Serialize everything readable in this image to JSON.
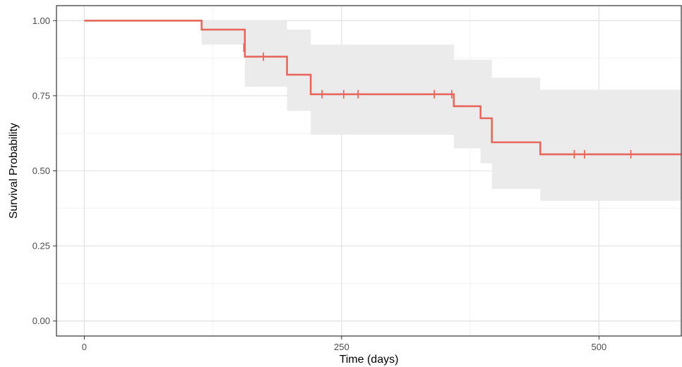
{
  "chart_data": {
    "type": "line",
    "title": "",
    "xlabel": "Time (days)",
    "ylabel": "Survival Probability",
    "xlim": [
      -27,
      580
    ],
    "ylim": [
      -0.05,
      1.05
    ],
    "x_ticks": [
      0,
      250,
      500
    ],
    "x_tick_labels": [
      "0",
      "250",
      "500"
    ],
    "y_ticks": [
      0,
      0.25,
      0.5,
      0.75,
      1.0
    ],
    "y_tick_labels": [
      "0.00",
      "0.25",
      "0.50",
      "0.75",
      "1.00"
    ],
    "grid": true,
    "legend": "none",
    "colors": {
      "line": "#E8675C",
      "ci_band": "#EBEBEB",
      "grid_major": "#E3E3E3",
      "grid_minor": "#F2F2F2",
      "panel_border": "#333333"
    },
    "series": [
      {
        "steps": [
          {
            "x": 0,
            "y": 1.0
          },
          {
            "x": 114,
            "y": 0.97
          },
          {
            "x": 156,
            "y": 0.88
          },
          {
            "x": 197,
            "y": 0.82
          },
          {
            "x": 220,
            "y": 0.755
          },
          {
            "x": 359,
            "y": 0.715
          },
          {
            "x": 385,
            "y": 0.675
          },
          {
            "x": 396,
            "y": 0.595
          },
          {
            "x": 443,
            "y": 0.555
          }
        ],
        "x_end": 580,
        "censored": [
          {
            "x": 155,
            "y": 0.91
          },
          {
            "x": 174,
            "y": 0.88
          },
          {
            "x": 231,
            "y": 0.755
          },
          {
            "x": 252,
            "y": 0.755
          },
          {
            "x": 266,
            "y": 0.755
          },
          {
            "x": 340,
            "y": 0.755
          },
          {
            "x": 357,
            "y": 0.755
          },
          {
            "x": 476,
            "y": 0.555
          },
          {
            "x": 486,
            "y": 0.555
          },
          {
            "x": 531,
            "y": 0.555
          }
        ],
        "ci_upper": [
          {
            "x": 0,
            "y": 1.0
          },
          {
            "x": 114,
            "y": 1.0
          },
          {
            "x": 197,
            "y": 0.97
          },
          {
            "x": 220,
            "y": 0.92
          },
          {
            "x": 359,
            "y": 0.87
          },
          {
            "x": 396,
            "y": 0.81
          },
          {
            "x": 443,
            "y": 0.77
          }
        ],
        "ci_lower": [
          {
            "x": 0,
            "y": 1.0
          },
          {
            "x": 114,
            "y": 0.92
          },
          {
            "x": 156,
            "y": 0.78
          },
          {
            "x": 197,
            "y": 0.7
          },
          {
            "x": 220,
            "y": 0.62
          },
          {
            "x": 359,
            "y": 0.575
          },
          {
            "x": 385,
            "y": 0.525
          },
          {
            "x": 396,
            "y": 0.44
          },
          {
            "x": 443,
            "y": 0.4
          }
        ]
      }
    ]
  }
}
